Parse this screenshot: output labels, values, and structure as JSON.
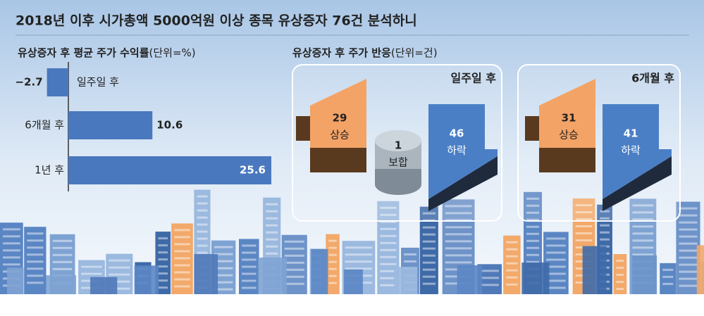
{
  "title": "2018년 이후 시가총액 5000억원 이상 종목 유상증자 76건 분석하니",
  "chart_data": [
    {
      "type": "bar",
      "orientation": "horizontal",
      "title": "유상증자 후 평균 주가 수익률",
      "unit": "(단위=%)",
      "categories": [
        "일주일 후",
        "6개월 후",
        "1년 후"
      ],
      "values": [
        -2.7,
        10.6,
        25.6
      ],
      "value_labels": [
        "−2.7",
        "10.6",
        "25.6"
      ],
      "color": "#4a78bf"
    },
    {
      "type": "pictogram",
      "title": "유상증자 후 주가 반응",
      "unit": "(단위=건)",
      "groups": [
        {
          "name": "일주일 후",
          "categories": [
            "상승",
            "보합",
            "하락"
          ],
          "values": [
            29,
            1,
            46
          ]
        },
        {
          "name": "6개월 후",
          "categories": [
            "상승",
            "하락"
          ],
          "values": [
            31,
            41
          ]
        }
      ]
    }
  ]
}
